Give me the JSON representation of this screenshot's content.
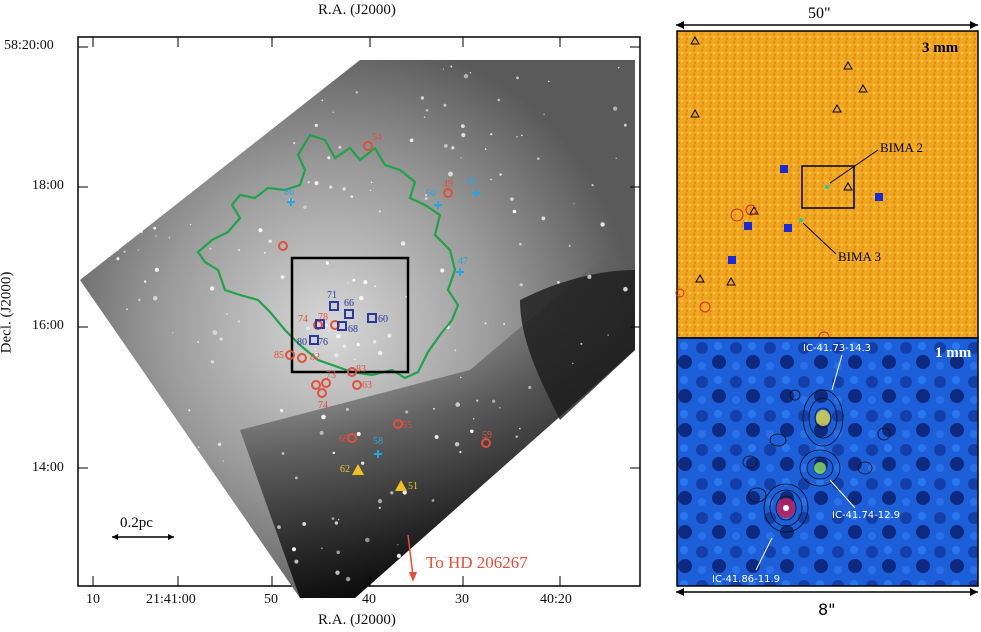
{
  "left_panel": {
    "top_axis_label": "R.A. (J2000)",
    "bottom_axis_label": "R.A. (J2000)",
    "y_axis_label": "Decl. (J2000)",
    "y_ticks": [
      "58:20:00",
      "18:00",
      "16:00",
      "14:00"
    ],
    "x_ticks": [
      "10",
      "21:41:00",
      "50",
      "40",
      "30",
      "40:20"
    ],
    "scale_bar_label": "0.2pc",
    "arrow_label": "To HD 206267",
    "source_labels": [
      "54",
      "49",
      "50",
      "46",
      "86",
      "47",
      "71",
      "66",
      "60",
      "68",
      "74",
      "78",
      "76",
      "80",
      "85",
      "82",
      "83",
      "63",
      "73",
      "74",
      "58",
      "62",
      "51",
      "69",
      "55",
      "59"
    ],
    "colors": {
      "contour": "#1fa24a",
      "red_marker": "#e0503a",
      "blue_marker": "#2a3a9a",
      "cyan_marker": "#2aa4e0",
      "yellow_marker": "#f0c020",
      "box": "#000000"
    }
  },
  "right_top": {
    "width_label": "50\"",
    "band_label": "3 mm",
    "annotations": [
      "BIMA 2",
      "BIMA 3"
    ],
    "colors": {
      "background": "#f0a820",
      "marker": "#1a2ad0"
    }
  },
  "right_bottom": {
    "band_label": "1 mm",
    "width_label": "8\"",
    "annotations": [
      "IC-41.73-14.3",
      "IC-41.74-12.9",
      "IC-41.86-11.9"
    ],
    "colors": {
      "background": "#1a5ad8"
    }
  }
}
